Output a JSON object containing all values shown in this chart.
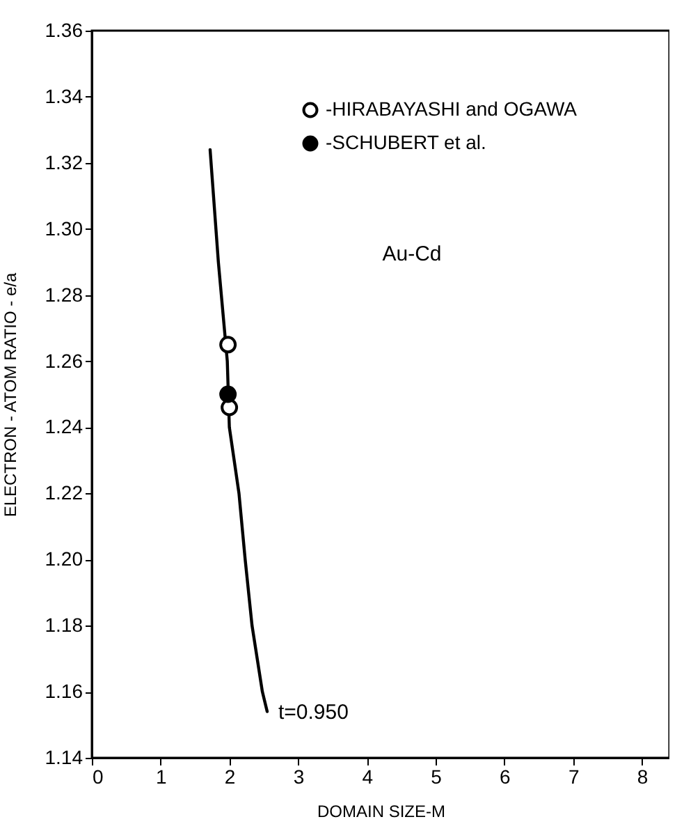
{
  "chart_data": {
    "type": "scatter",
    "xlabel": "DOMAIN SIZE-M",
    "ylabel": "ELECTRON - ATOM RATIO - e/a",
    "xlim": [
      0,
      8.4
    ],
    "xticks": [
      0,
      1,
      2,
      3,
      4,
      5,
      6,
      7,
      8
    ],
    "ylim": [
      1.14,
      1.36
    ],
    "yticks": [
      1.14,
      1.16,
      1.18,
      {
        "value": 1.2,
        "label": "1.20"
      },
      1.22,
      1.24,
      1.26,
      1.28,
      {
        "value": 1.3,
        "label": "1.30"
      },
      1.32,
      1.34,
      1.36
    ],
    "grid": false,
    "legend": "top right",
    "marker": "circle",
    "series": [
      {
        "type": "line",
        "marker": "none",
        "color": "#000000",
        "x": [
          1.72,
          1.84,
          1.97,
          2.0,
          2.07,
          2.14,
          2.23,
          2.33,
          2.48,
          2.55
        ],
        "values": [
          1.324,
          1.29,
          1.26,
          1.24,
          1.23,
          1.22,
          1.2,
          1.18,
          1.16,
          1.154
        ]
      },
      {
        "name": "-HIRABAYASHI and OGAWA",
        "color": "#ffffff",
        "x": [
          1.98,
          2.0
        ],
        "values": [
          1.265,
          1.246
        ]
      },
      {
        "name": "-SCHUBERT et al.",
        "color": "#000000",
        "x": [
          1.98
        ],
        "values": [
          1.25
        ]
      }
    ],
    "annotations": [
      {
        "text": "t=0.950",
        "x": 2.55,
        "y": 1.154
      },
      "Au-Cd"
    ]
  }
}
